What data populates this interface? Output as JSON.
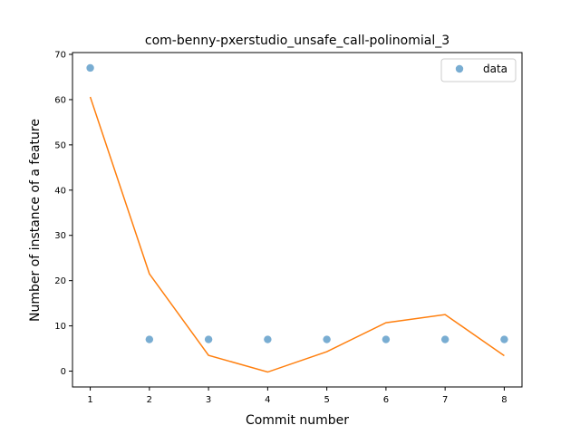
{
  "chart_data": {
    "type": "scatter",
    "title": "com-benny-pxerstudio_unsafe_call-polinomial_3",
    "xlabel": "Commit number",
    "ylabel": "Number of instance of a feature",
    "xlim": [
      0.7,
      8.3
    ],
    "ylim": [
      -3.5,
      70.4
    ],
    "xticks": [
      1,
      2,
      3,
      4,
      5,
      6,
      7,
      8
    ],
    "yticks": [
      0,
      10,
      20,
      30,
      40,
      50,
      60,
      70
    ],
    "legend_position": "top-right",
    "grid": false,
    "series": [
      {
        "name": "data",
        "kind": "scatter",
        "color": "#1f77b4",
        "x": [
          1,
          2,
          3,
          4,
          5,
          6,
          7,
          8
        ],
        "y": [
          67,
          7,
          7,
          7,
          7,
          7,
          7,
          7
        ]
      },
      {
        "kind": "line",
        "color": "#ff7f0e",
        "x": [
          1,
          2,
          3,
          4,
          5,
          6,
          7,
          8
        ],
        "y": [
          60.6,
          21.5,
          3.5,
          -0.2,
          4.3,
          10.7,
          12.5,
          3.4
        ]
      }
    ]
  }
}
